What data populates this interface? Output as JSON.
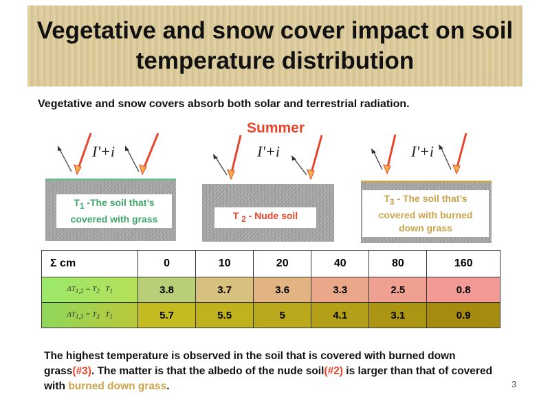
{
  "title": {
    "line1": "Vegetative and snow cover impact on soil",
    "line2": "temperature distribution"
  },
  "intro": "Vegetative and snow covers absorb both solar and terrestrial radiation.",
  "season": "Summer",
  "formula": "I'+i",
  "soils": [
    {
      "sub": "1",
      "label_html": "T<sub>1</sub> -The soil that’s covered with grass"
    },
    {
      "sub": "2",
      "label_html": "T <sub>2</sub> - Nude soil"
    },
    {
      "sub": "3",
      "label_html": "T<sub>3</sub> - The soil that’s covered with burned down grass"
    }
  ],
  "table": {
    "header": [
      "Σ cm",
      "0",
      "10",
      "20",
      "40",
      "80",
      "160"
    ],
    "rows": [
      {
        "label_html": "ΔT<sub>1,2</sub> = T<sub>2</sub> &nbsp; T<sub>1</sub>",
        "values": [
          "3.8",
          "3.7",
          "3.6",
          "3.3",
          "2.5",
          "0.8"
        ]
      },
      {
        "label_html": "ΔT<sub>1,3</sub> = T<sub>3</sub> &nbsp; T<sub>1</sub>",
        "values": [
          "5.7",
          "5.5",
          "5",
          "4.1",
          "3.1",
          "0.9"
        ]
      }
    ]
  },
  "conclusion": {
    "part1": "The highest temperature is observed in the soil that is covered with burned down grass",
    "ref3": "(#3)",
    "part2": ". The matter is that the albedo of the nude soil",
    "ref2": "(#2)",
    "part3": " is larger than that of covered with ",
    "highlight": "burned down grass",
    "part4": "."
  },
  "page_number": "3",
  "colors": {
    "accent_red": "#e8452c",
    "grass_green": "#3fa66a",
    "burned_gold": "#c9a44a"
  }
}
